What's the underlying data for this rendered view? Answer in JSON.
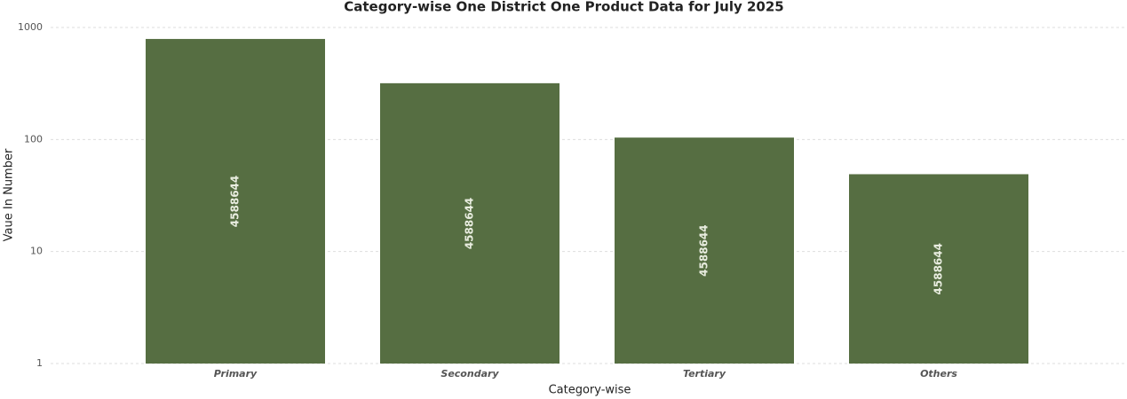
{
  "chart_data": {
    "type": "bar",
    "title": "Category-wise One District One Product Data for July 2025",
    "x_label": "Category-wise",
    "y_label": "Vaue In Number",
    "categories": [
      "Primary",
      "Secondary",
      "Tertiary",
      "Others"
    ],
    "values": [
      790,
      318,
      104,
      49
    ],
    "bar_texts": [
      "4588644",
      "4588644",
      "4588644",
      "4588644"
    ],
    "color": "#566e42",
    "log_scale": true,
    "ylim": [
      1,
      1000
    ],
    "yticks": [
      1,
      10,
      100,
      1000
    ],
    "grid": true
  }
}
